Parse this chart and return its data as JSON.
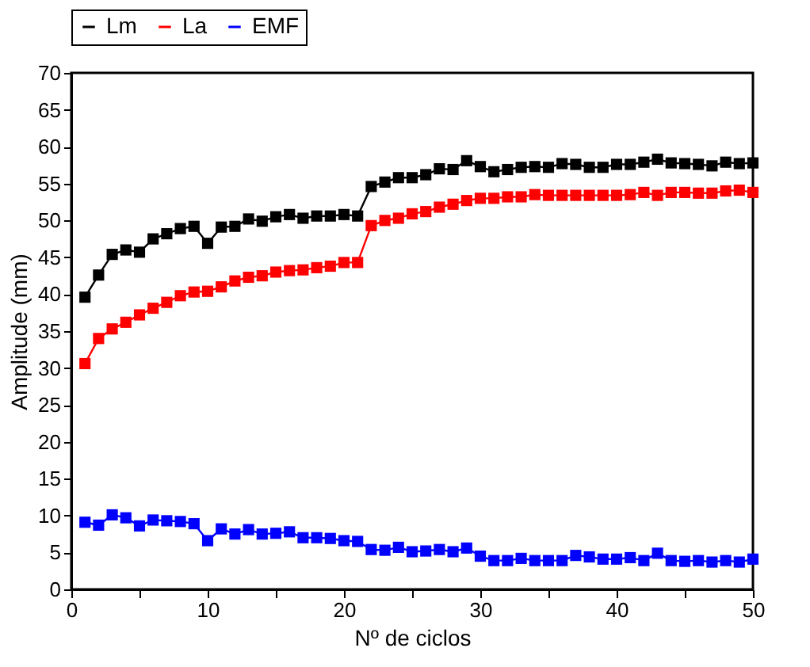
{
  "chart_data": {
    "type": "line",
    "xlabel": "Nº de ciclos",
    "ylabel": "Amplitude (mm)",
    "x": [
      1,
      2,
      3,
      4,
      5,
      6,
      7,
      8,
      9,
      10,
      11,
      12,
      13,
      14,
      15,
      16,
      17,
      18,
      19,
      20,
      21,
      22,
      23,
      24,
      25,
      26,
      27,
      28,
      29,
      30,
      31,
      32,
      33,
      34,
      35,
      36,
      37,
      38,
      39,
      40,
      41,
      42,
      43,
      44,
      45,
      46,
      47,
      48,
      49,
      50
    ],
    "series": [
      {
        "name": "Lm",
        "color": "#000000",
        "values": [
          39.6,
          42.6,
          45.4,
          46.0,
          45.7,
          47.5,
          48.2,
          48.9,
          49.2,
          46.9,
          49.1,
          49.2,
          50.2,
          49.9,
          50.5,
          50.8,
          50.3,
          50.6,
          50.6,
          50.8,
          50.6,
          54.6,
          55.2,
          55.8,
          55.8,
          56.2,
          57.0,
          56.9,
          58.1,
          57.3,
          56.6,
          56.9,
          57.2,
          57.3,
          57.2,
          57.7,
          57.6,
          57.2,
          57.2,
          57.6,
          57.6,
          57.9,
          58.3,
          57.8,
          57.7,
          57.6,
          57.4,
          57.9,
          57.7,
          57.8
        ]
      },
      {
        "name": "La",
        "color": "#ff0000",
        "values": [
          30.6,
          34.0,
          35.3,
          36.2,
          37.2,
          38.1,
          38.9,
          39.8,
          40.3,
          40.4,
          41.0,
          41.8,
          42.3,
          42.5,
          43.0,
          43.2,
          43.3,
          43.6,
          43.8,
          44.3,
          44.3,
          49.3,
          50.0,
          50.3,
          50.9,
          51.2,
          51.8,
          52.2,
          52.7,
          53.0,
          53.0,
          53.2,
          53.2,
          53.5,
          53.4,
          53.4,
          53.4,
          53.4,
          53.4,
          53.4,
          53.5,
          53.8,
          53.4,
          53.8,
          53.8,
          53.7,
          53.7,
          54.0,
          54.1,
          53.8
        ]
      },
      {
        "name": "EMF",
        "color": "#0000ff",
        "values": [
          9.1,
          8.7,
          10.1,
          9.7,
          8.6,
          9.4,
          9.3,
          9.2,
          8.9,
          6.6,
          8.2,
          7.5,
          8.1,
          7.5,
          7.6,
          7.8,
          7.0,
          7.0,
          6.9,
          6.6,
          6.5,
          5.4,
          5.3,
          5.7,
          5.1,
          5.2,
          5.4,
          5.1,
          5.6,
          4.5,
          3.9,
          3.9,
          4.2,
          3.9,
          3.9,
          3.9,
          4.6,
          4.4,
          4.1,
          4.1,
          4.3,
          3.9,
          4.9,
          3.9,
          3.8,
          3.9,
          3.7,
          3.9,
          3.7,
          4.1
        ]
      }
    ],
    "xlim": [
      0,
      50
    ],
    "xticks": [
      0,
      {
        "value": 5,
        "label": null
      },
      10,
      {
        "value": 15,
        "label": null
      },
      20,
      {
        "value": 25,
        "label": null
      },
      30,
      {
        "value": 35,
        "label": null
      },
      40,
      {
        "value": 45,
        "label": null
      },
      50
    ],
    "ylim": [
      0,
      70
    ],
    "yticks": [
      0,
      5,
      10,
      15,
      20,
      25,
      30,
      35,
      40,
      45,
      50,
      55,
      60,
      65,
      70
    ],
    "marker": "square",
    "line_style": "solid",
    "grid": false,
    "legend": "top"
  }
}
